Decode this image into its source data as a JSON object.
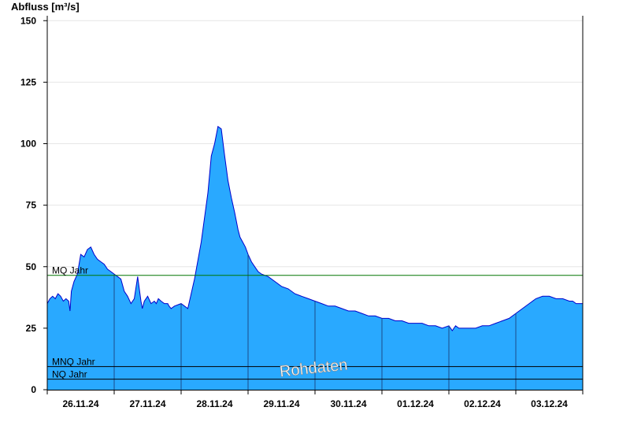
{
  "chart_data": {
    "type": "area",
    "ylabel": "Abfluss [m³/s]",
    "ylim": [
      0,
      152
    ],
    "yticks": [
      0,
      25,
      50,
      75,
      100,
      125,
      150
    ],
    "x_day_labels": [
      "26.11.24",
      "27.11.24",
      "28.11.24",
      "29.11.24",
      "30.11.24",
      "01.12.24",
      "02.12.24",
      "03.12.24"
    ],
    "x_range_days": [
      0,
      8
    ],
    "grid": true,
    "colors": {
      "fill": "#29a9ff",
      "line": "#0000cc",
      "mq": "#007700",
      "ref": "#000000"
    },
    "reference_lines": [
      {
        "label": "MQ Jahr",
        "value": 46.5
      },
      {
        "label": "MNQ Jahr",
        "value": 9.4
      },
      {
        "label": "NQ Jahr",
        "value": 4.3
      }
    ],
    "watermark": "Rohdaten",
    "series": [
      {
        "x": [
          0.0,
          0.04,
          0.08,
          0.12,
          0.16,
          0.2,
          0.24,
          0.28,
          0.32,
          0.34,
          0.36,
          0.4,
          0.45,
          0.5,
          0.55,
          0.6,
          0.65,
          0.7,
          0.75,
          0.8,
          0.85,
          0.9,
          0.95,
          1.0,
          1.05,
          1.1,
          1.15,
          1.2,
          1.25,
          1.3,
          1.35,
          1.38,
          1.4,
          1.42,
          1.45,
          1.5,
          1.55,
          1.6,
          1.63,
          1.66,
          1.7,
          1.75,
          1.8,
          1.82,
          1.85,
          1.9,
          2.0,
          2.1,
          2.2,
          2.3,
          2.4,
          2.45,
          2.5,
          2.55,
          2.6,
          2.65,
          2.7,
          2.75,
          2.8,
          2.85,
          2.88,
          2.92,
          2.96,
          3.0,
          3.05,
          3.1,
          3.15,
          3.2,
          3.3,
          3.4,
          3.5,
          3.6,
          3.7,
          3.8,
          3.9,
          4.0,
          4.1,
          4.2,
          4.3,
          4.4,
          4.5,
          4.6,
          4.7,
          4.8,
          4.9,
          5.0,
          5.1,
          5.2,
          5.3,
          5.4,
          5.5,
          5.6,
          5.7,
          5.8,
          5.9,
          6.0,
          6.05,
          6.1,
          6.15,
          6.2,
          6.3,
          6.4,
          6.5,
          6.6,
          6.7,
          6.8,
          6.9,
          7.0,
          7.1,
          7.2,
          7.3,
          7.4,
          7.5,
          7.6,
          7.7,
          7.8,
          7.85,
          7.9,
          7.95,
          8.0
        ],
        "y": [
          35,
          37,
          38,
          37,
          39,
          38,
          36,
          37,
          36,
          32,
          40,
          44,
          47,
          55,
          54,
          57,
          58,
          55,
          53,
          52,
          51,
          49,
          48,
          47,
          46,
          45,
          40,
          38,
          35,
          37,
          46,
          40,
          36,
          33,
          36,
          38,
          35,
          36,
          35,
          37,
          36,
          35,
          35,
          34,
          33,
          34,
          35,
          33,
          45,
          60,
          80,
          95,
          100,
          107,
          106,
          95,
          85,
          78,
          72,
          65,
          62,
          60,
          58,
          55,
          52,
          50,
          48,
          47,
          46,
          44,
          42,
          41,
          39,
          38,
          37,
          36,
          35,
          34,
          34,
          33,
          32,
          32,
          31,
          30,
          30,
          29,
          29,
          28,
          28,
          27,
          27,
          27,
          26,
          26,
          25,
          26,
          24,
          26,
          25,
          25,
          25,
          25,
          26,
          26,
          27,
          28,
          29,
          31,
          33,
          35,
          37,
          38,
          38,
          37,
          37,
          36,
          36,
          35,
          35,
          35
        ]
      }
    ]
  }
}
